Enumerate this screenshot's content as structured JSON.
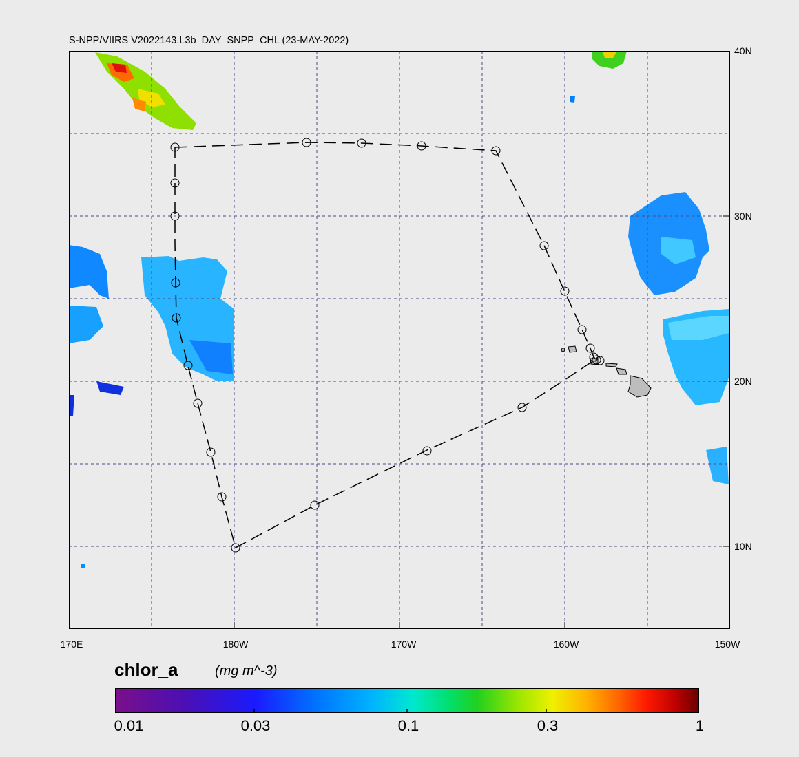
{
  "title": "S-NPP/VIIRS V2022143.L3b_DAY_SNPP_CHL (23-MAY-2022)",
  "lat_labels": [
    "40N",
    "30N",
    "20N",
    "10N"
  ],
  "lon_labels": [
    "170E",
    "180W",
    "170W",
    "160W",
    "150W"
  ],
  "colorbar": {
    "variable": "chlor_a",
    "units": "(mg m^-3)",
    "ticks": [
      "0.01",
      "0.03",
      "0.1",
      "0.3",
      "1"
    ]
  },
  "colors": {
    "background": "#ebebeb",
    "graticule": "#4a4a8a",
    "track": "#000000",
    "land": "#bdbdbd"
  }
}
